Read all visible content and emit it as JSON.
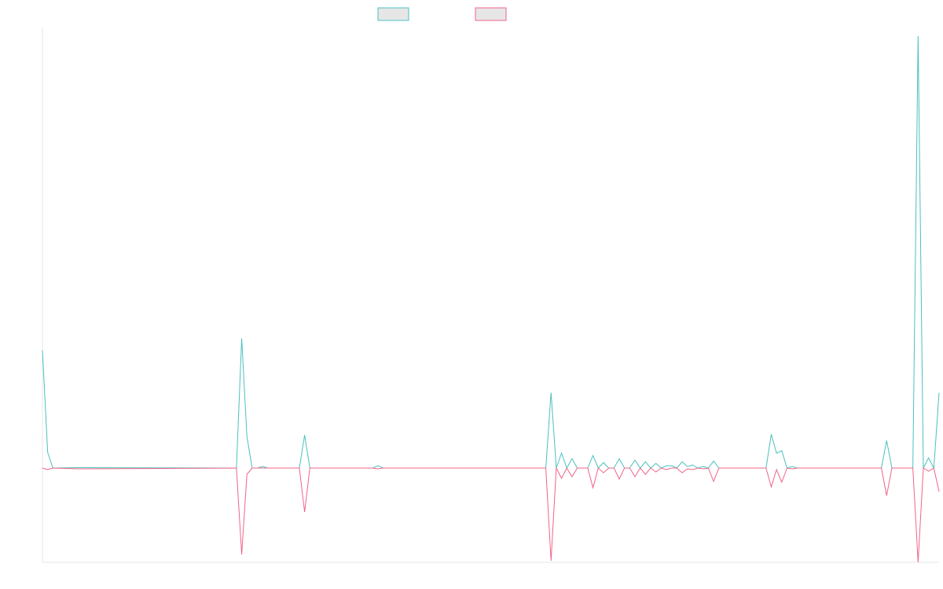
{
  "chart_data": {
    "type": "line",
    "title": "",
    "xlabel": "",
    "ylabel": "",
    "grid": false,
    "legend_position": "top-center",
    "ylim": [
      -12,
      56
    ],
    "x_count": 171,
    "series": [
      {
        "color": "#4bc0c0",
        "points": [
          [
            0,
            15
          ],
          [
            1,
            2
          ],
          [
            2,
            0
          ],
          [
            7,
            0.05
          ],
          [
            37,
            0
          ],
          [
            38,
            16.5
          ],
          [
            39,
            4
          ],
          [
            40,
            0
          ],
          [
            41,
            0
          ],
          [
            42,
            0.2
          ],
          [
            43,
            0
          ],
          [
            49,
            0
          ],
          [
            50,
            4.2
          ],
          [
            51,
            0
          ],
          [
            63,
            0
          ],
          [
            64,
            0.3
          ],
          [
            65,
            0
          ],
          [
            96,
            0
          ],
          [
            97,
            9.6
          ],
          [
            98,
            0
          ],
          [
            99,
            1.9
          ],
          [
            100,
            0
          ],
          [
            101,
            1.2
          ],
          [
            102,
            0
          ],
          [
            104,
            0
          ],
          [
            105,
            1.6
          ],
          [
            106,
            0
          ],
          [
            107,
            0.7
          ],
          [
            108,
            0
          ],
          [
            109,
            0
          ],
          [
            110,
            1.2
          ],
          [
            111,
            0
          ],
          [
            112,
            0
          ],
          [
            113,
            1.0
          ],
          [
            114,
            0
          ],
          [
            115,
            0.8
          ],
          [
            116,
            0
          ],
          [
            117,
            0.6
          ],
          [
            118,
            0
          ],
          [
            119,
            0.3
          ],
          [
            120,
            0.3
          ],
          [
            121,
            0
          ],
          [
            122,
            0.8
          ],
          [
            123,
            0.2
          ],
          [
            124,
            0.4
          ],
          [
            125,
            0
          ],
          [
            126,
            0.2
          ],
          [
            127,
            0
          ],
          [
            128,
            0.9
          ],
          [
            129,
            0
          ],
          [
            138,
            0
          ],
          [
            139,
            4.3
          ],
          [
            140,
            1.9
          ],
          [
            141,
            2.2
          ],
          [
            142,
            0
          ],
          [
            143,
            0.2
          ],
          [
            144,
            0
          ],
          [
            160,
            0
          ],
          [
            161,
            3.5
          ],
          [
            162,
            0
          ],
          [
            166,
            0
          ],
          [
            167,
            55
          ],
          [
            168,
            0
          ],
          [
            169,
            1.3
          ],
          [
            170,
            0
          ],
          [
            171,
            9.6
          ]
        ]
      },
      {
        "color": "#f06488",
        "points": [
          [
            0,
            0
          ],
          [
            1,
            -0.2
          ],
          [
            2,
            0
          ],
          [
            7,
            -0.1
          ],
          [
            37,
            0
          ],
          [
            38,
            -11
          ],
          [
            39,
            -0.8
          ],
          [
            40,
            0
          ],
          [
            49,
            0
          ],
          [
            50,
            -5.6
          ],
          [
            51,
            0
          ],
          [
            63,
            0
          ],
          [
            64,
            -0.1
          ],
          [
            65,
            0
          ],
          [
            96,
            0
          ],
          [
            97,
            -11.8
          ],
          [
            98,
            0
          ],
          [
            99,
            -1.3
          ],
          [
            100,
            0
          ],
          [
            101,
            -1.1
          ],
          [
            102,
            0
          ],
          [
            104,
            0
          ],
          [
            105,
            -2.5
          ],
          [
            106,
            0
          ],
          [
            107,
            -0.6
          ],
          [
            108,
            0
          ],
          [
            109,
            0
          ],
          [
            110,
            -1.4
          ],
          [
            111,
            0
          ],
          [
            112,
            0
          ],
          [
            113,
            -1.1
          ],
          [
            114,
            0
          ],
          [
            115,
            -0.8
          ],
          [
            116,
            0
          ],
          [
            117,
            -0.5
          ],
          [
            118,
            0
          ],
          [
            119,
            -0.2
          ],
          [
            120,
            0
          ],
          [
            121,
            0
          ],
          [
            122,
            -0.6
          ],
          [
            123,
            -0.1
          ],
          [
            124,
            -0.2
          ],
          [
            125,
            0
          ],
          [
            126,
            -0.1
          ],
          [
            127,
            0
          ],
          [
            128,
            -1.7
          ],
          [
            129,
            0
          ],
          [
            138,
            0
          ],
          [
            139,
            -2.4
          ],
          [
            140,
            -0.2
          ],
          [
            141,
            -1.8
          ],
          [
            142,
            0
          ],
          [
            143,
            -0.1
          ],
          [
            144,
            0
          ],
          [
            160,
            0
          ],
          [
            161,
            -3.5
          ],
          [
            162,
            0
          ],
          [
            166,
            0
          ],
          [
            167,
            -12
          ],
          [
            168,
            0
          ],
          [
            169,
            -0.4
          ],
          [
            170,
            0
          ],
          [
            171,
            -3.0
          ]
        ]
      }
    ]
  }
}
